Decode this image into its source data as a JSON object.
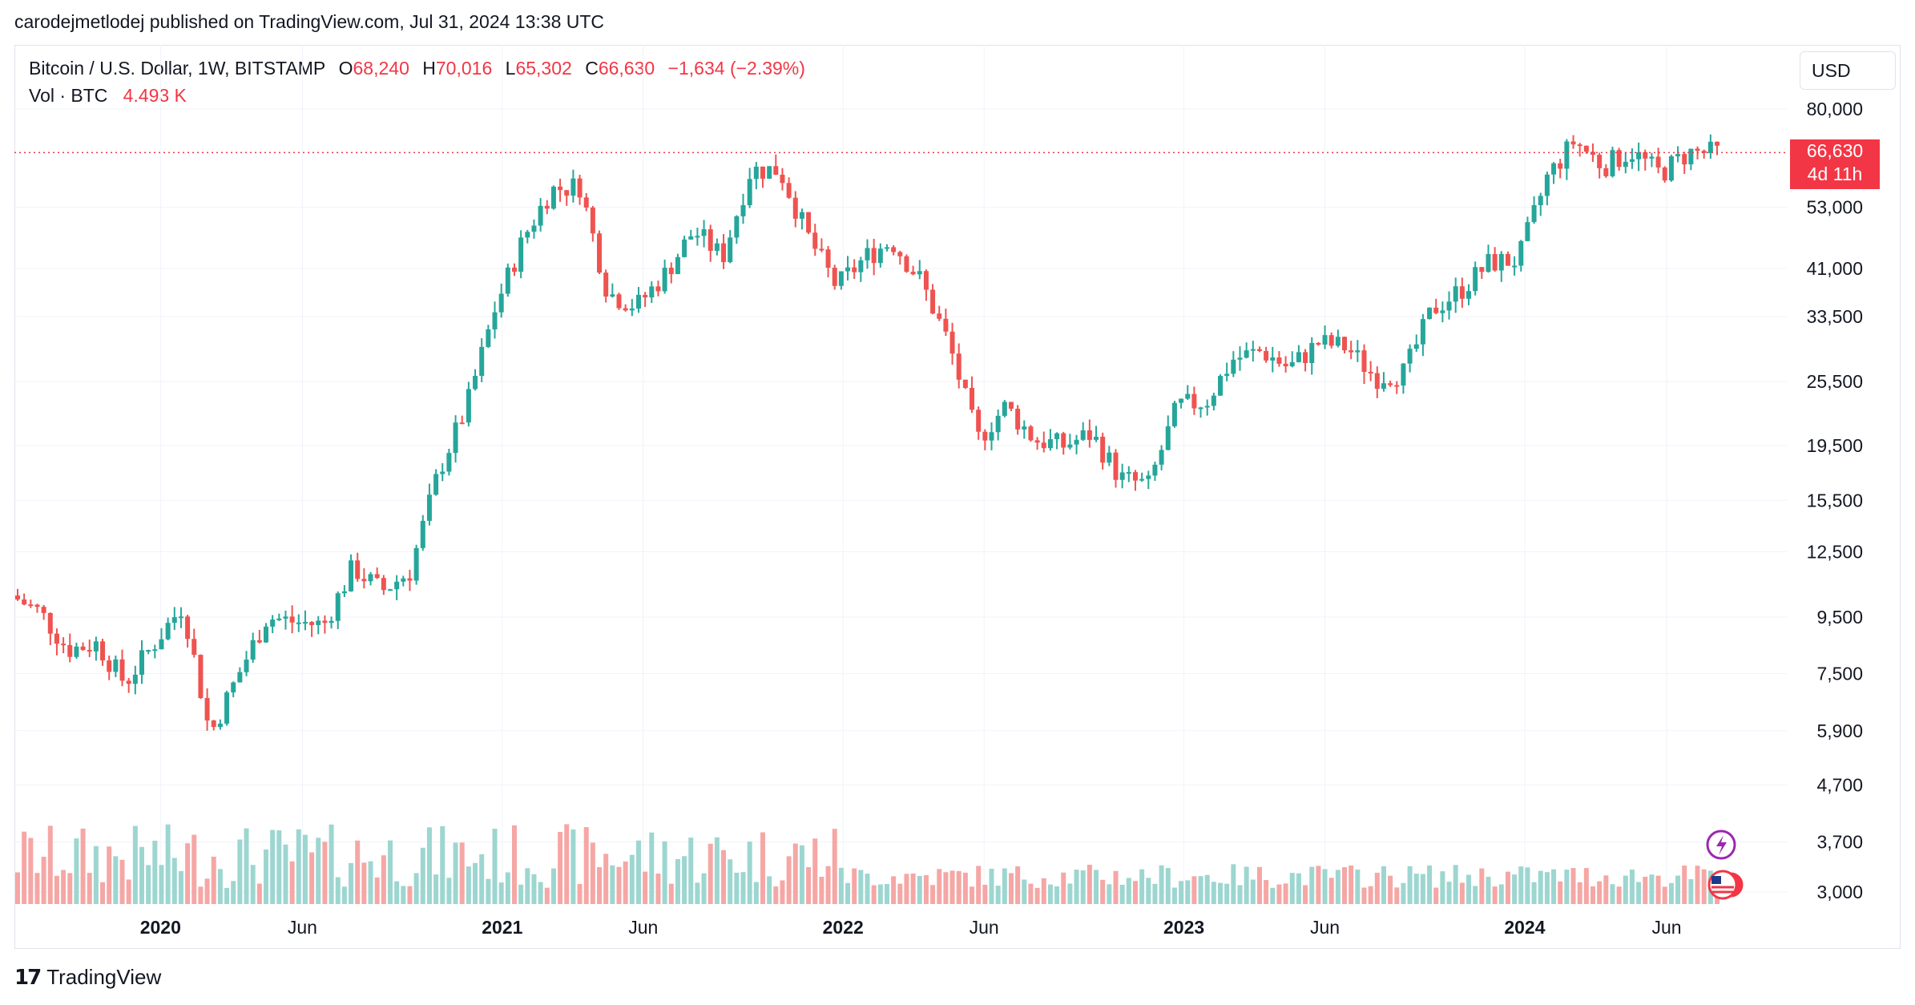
{
  "publisher_line": "carodejmetlodej published on TradingView.com, Jul 31, 2024 13:38 UTC",
  "legend": {
    "symbol": "Bitcoin / U.S. Dollar, 1W, BITSTAMP",
    "o_label": "O",
    "o_value": "68,240",
    "h_label": "H",
    "h_value": "70,016",
    "l_label": "L",
    "l_value": "65,302",
    "c_label": "C",
    "c_value": "66,630",
    "change": "−1,634 (−2.39%)",
    "vol_label": "Vol · BTC",
    "vol_value": "4.493 K"
  },
  "currency_button": "USD",
  "price_label": {
    "price": "66,630",
    "countdown": "4d 11h"
  },
  "brand": "TradingView",
  "colors": {
    "up": "#26a69a",
    "down": "#ef5350",
    "vol_up": "#9dd6d0",
    "vol_down": "#f5a7a5",
    "grid": "#f0f3fa",
    "last": "#f23645"
  },
  "chart_data": {
    "type": "candlestick",
    "timeframe": "1W",
    "y_scale": "log",
    "y_ticks": [
      80000,
      53000,
      41000,
      33500,
      25500,
      19500,
      15500,
      12500,
      9500,
      7500,
      5900,
      4700,
      3700,
      3000
    ],
    "y_tick_labels": [
      "80,000",
      "53,000",
      "41,000",
      "33,500",
      "25,500",
      "19,500",
      "15,500",
      "12,500",
      "9,500",
      "7,500",
      "5,900",
      "4,700",
      "3,700",
      "3,000"
    ],
    "x_ticks": [
      {
        "label": "2020",
        "date": "2020-01",
        "major": true
      },
      {
        "label": "Jun",
        "date": "2020-06",
        "major": false
      },
      {
        "label": "2021",
        "date": "2021-01",
        "major": true
      },
      {
        "label": "Jun",
        "date": "2021-06",
        "major": false
      },
      {
        "label": "2022",
        "date": "2022-01",
        "major": true
      },
      {
        "label": "Jun",
        "date": "2022-06",
        "major": false
      },
      {
        "label": "2023",
        "date": "2023-01",
        "major": true
      },
      {
        "label": "Jun",
        "date": "2023-06",
        "major": false
      },
      {
        "label": "2024",
        "date": "2024-01",
        "major": true
      },
      {
        "label": "Jun",
        "date": "2024-06",
        "major": false
      }
    ],
    "last_price": 66630,
    "weekly_close_path": [
      [
        "2019-08",
        10400
      ],
      [
        "2019-09",
        9700
      ],
      [
        "2019-10",
        8300
      ],
      [
        "2019-11",
        8500
      ],
      [
        "2019-12",
        7200
      ],
      [
        "2020-01",
        8500
      ],
      [
        "2020-02",
        10000
      ],
      [
        "2020-03",
        5800
      ],
      [
        "2020-04",
        7500
      ],
      [
        "2020-05",
        9500
      ],
      [
        "2020-06",
        9300
      ],
      [
        "2020-07",
        9200
      ],
      [
        "2020-08",
        11700
      ],
      [
        "2020-09",
        10600
      ],
      [
        "2020-10",
        11500
      ],
      [
        "2020-11",
        17500
      ],
      [
        "2020-12",
        23000
      ],
      [
        "2021-01",
        35000
      ],
      [
        "2021-02",
        47000
      ],
      [
        "2021-03",
        57000
      ],
      [
        "2021-04",
        58000
      ],
      [
        "2021-05",
        37000
      ],
      [
        "2021-06",
        35000
      ],
      [
        "2021-07",
        40000
      ],
      [
        "2021-08",
        48000
      ],
      [
        "2021-09",
        43000
      ],
      [
        "2021-10",
        62000
      ],
      [
        "2021-11",
        62000
      ],
      [
        "2021-12",
        47000
      ],
      [
        "2022-01",
        38000
      ],
      [
        "2022-02",
        43000
      ],
      [
        "2022-03",
        46000
      ],
      [
        "2022-04",
        39000
      ],
      [
        "2022-05",
        30000
      ],
      [
        "2022-06",
        20000
      ],
      [
        "2022-07",
        23000
      ],
      [
        "2022-08",
        20000
      ],
      [
        "2022-09",
        19500
      ],
      [
        "2022-10",
        20500
      ],
      [
        "2022-11",
        17000
      ],
      [
        "2022-12",
        16500
      ],
      [
        "2023-01",
        23000
      ],
      [
        "2023-02",
        23500
      ],
      [
        "2023-03",
        28000
      ],
      [
        "2023-04",
        29000
      ],
      [
        "2023-05",
        27000
      ],
      [
        "2023-06",
        30000
      ],
      [
        "2023-07",
        29500
      ],
      [
        "2023-08",
        26000
      ],
      [
        "2023-09",
        26500
      ],
      [
        "2023-10",
        34500
      ],
      [
        "2023-11",
        37500
      ],
      [
        "2023-12",
        42000
      ],
      [
        "2024-01",
        42500
      ],
      [
        "2024-02",
        60000
      ],
      [
        "2024-03",
        70000
      ],
      [
        "2024-04",
        63000
      ],
      [
        "2024-05",
        67000
      ],
      [
        "2024-06",
        61000
      ],
      [
        "2024-07",
        66630
      ]
    ]
  }
}
